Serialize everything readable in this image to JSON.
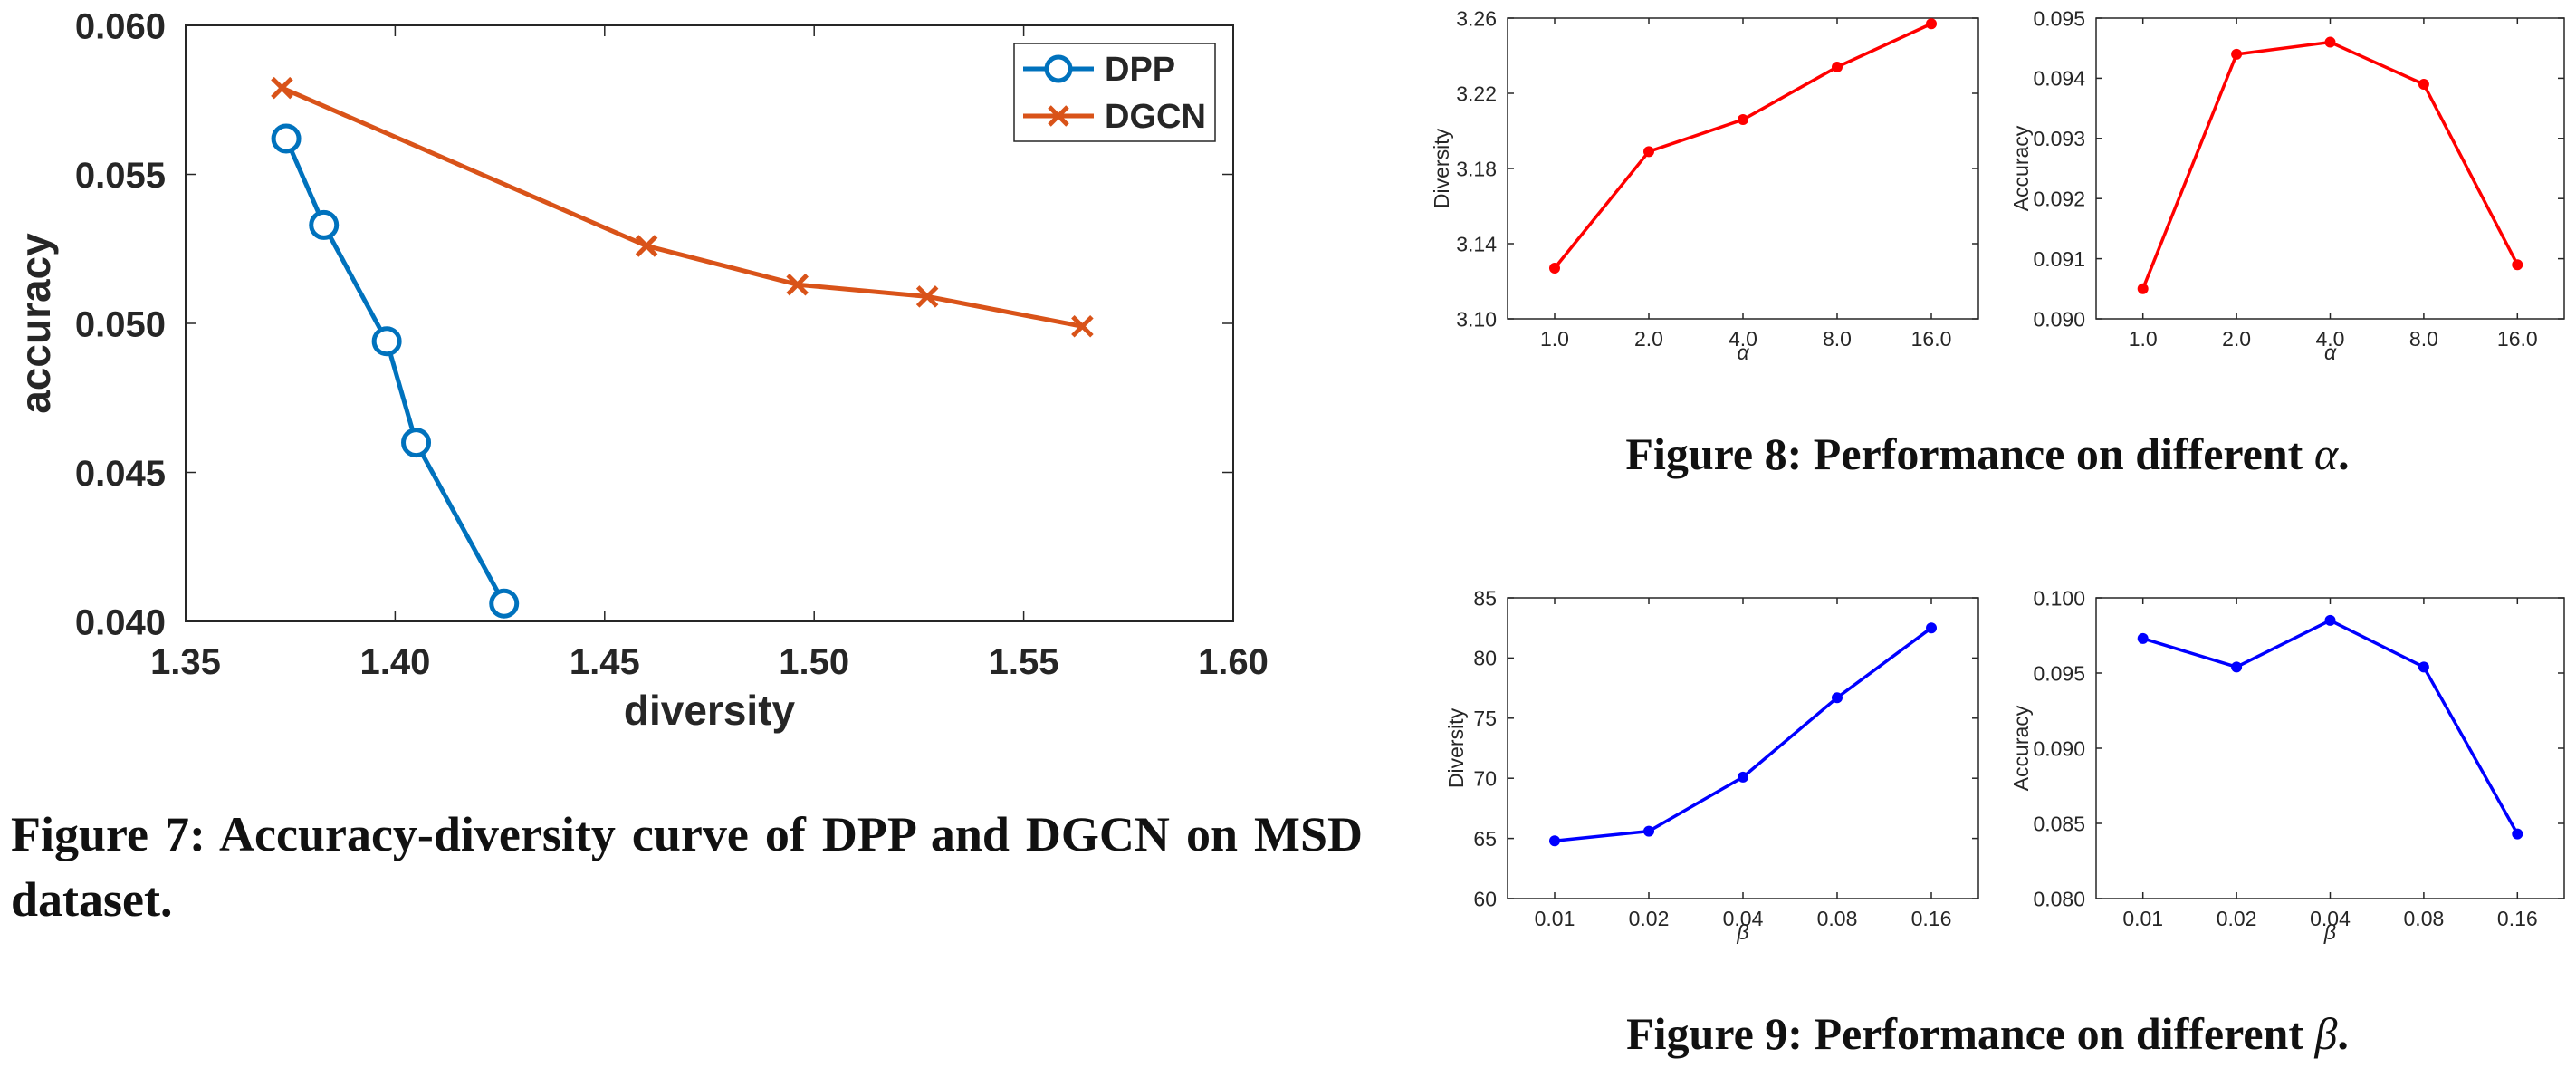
{
  "captions": {
    "fig7": "Figure 7: Accuracy-diversity curve of DPP and DGCN on MSD dataset.",
    "fig8_prefix": "Figure 8: Performance on different ",
    "fig8_symbol": "α",
    "fig8_suffix": ".",
    "fig9_prefix": "Figure 9: Performance on different ",
    "fig9_symbol": "β",
    "fig9_suffix": "."
  },
  "chart_data": [
    {
      "id": "fig7",
      "type": "line",
      "xlabel": "diversity",
      "ylabel": "accuracy",
      "xlim": [
        1.35,
        1.6
      ],
      "ylim": [
        0.04,
        0.06
      ],
      "xticks": [
        1.35,
        1.4,
        1.45,
        1.5,
        1.55,
        1.6
      ],
      "xtick_labels": [
        "1.35",
        "1.40",
        "1.45",
        "1.50",
        "1.55",
        "1.60"
      ],
      "yticks": [
        0.04,
        0.045,
        0.05,
        0.055,
        0.06
      ],
      "ytick_labels": [
        "0.040",
        "0.045",
        "0.050",
        "0.055",
        "0.060"
      ],
      "legend_position": "top-right",
      "grid": false,
      "series": [
        {
          "name": "DPP",
          "color": "#0072BD",
          "marker": "circle",
          "points": [
            [
              1.374,
              0.0562
            ],
            [
              1.383,
              0.0533
            ],
            [
              1.398,
              0.0494
            ],
            [
              1.405,
              0.046
            ],
            [
              1.426,
              0.0406
            ]
          ]
        },
        {
          "name": "DGCN",
          "color": "#D95319",
          "marker": "x",
          "points": [
            [
              1.373,
              0.0579
            ],
            [
              1.46,
              0.0526
            ],
            [
              1.496,
              0.0513
            ],
            [
              1.527,
              0.0509
            ],
            [
              1.564,
              0.0499
            ]
          ]
        }
      ]
    },
    {
      "id": "fig8-diversity",
      "type": "line",
      "xlabel": "α",
      "ylabel": "Diversity",
      "categories": [
        "1.0",
        "2.0",
        "4.0",
        "8.0",
        "16.0"
      ],
      "ylim": [
        3.1,
        3.26
      ],
      "yticks": [
        3.1,
        3.14,
        3.18,
        3.22,
        3.26
      ],
      "ytick_labels": [
        "3.10",
        "3.14",
        "3.18",
        "3.22",
        "3.26"
      ],
      "grid": false,
      "series": [
        {
          "color": "#FF0000",
          "values": [
            3.127,
            3.189,
            3.206,
            3.234,
            3.257
          ]
        }
      ]
    },
    {
      "id": "fig8-accuracy",
      "type": "line",
      "xlabel": "α",
      "ylabel": "Accuracy",
      "categories": [
        "1.0",
        "2.0",
        "4.0",
        "8.0",
        "16.0"
      ],
      "ylim": [
        0.09,
        0.095
      ],
      "yticks": [
        0.09,
        0.091,
        0.092,
        0.093,
        0.094,
        0.095
      ],
      "ytick_labels": [
        "0.090",
        "0.091",
        "0.092",
        "0.093",
        "0.094",
        "0.095"
      ],
      "grid": false,
      "series": [
        {
          "color": "#FF0000",
          "values": [
            0.0905,
            0.0944,
            0.0946,
            0.0939,
            0.0909
          ]
        }
      ]
    },
    {
      "id": "fig9-diversity",
      "type": "line",
      "xlabel": "β",
      "ylabel": "Diversity",
      "categories": [
        "0.01",
        "0.02",
        "0.04",
        "0.08",
        "0.16"
      ],
      "ylim": [
        60,
        85
      ],
      "yticks": [
        60,
        65,
        70,
        75,
        80,
        85
      ],
      "ytick_labels": [
        "60",
        "65",
        "70",
        "75",
        "80",
        "85"
      ],
      "grid": false,
      "series": [
        {
          "color": "#0000FF",
          "values": [
            64.8,
            65.6,
            70.1,
            76.7,
            82.5
          ]
        }
      ]
    },
    {
      "id": "fig9-accuracy",
      "type": "line",
      "xlabel": "β",
      "ylabel": "Accuracy",
      "categories": [
        "0.01",
        "0.02",
        "0.04",
        "0.08",
        "0.16"
      ],
      "ylim": [
        0.08,
        0.1
      ],
      "yticks": [
        0.08,
        0.085,
        0.09,
        0.095,
        0.1
      ],
      "ytick_labels": [
        "0.080",
        "0.085",
        "0.090",
        "0.095",
        "0.100"
      ],
      "grid": false,
      "series": [
        {
          "color": "#0000FF",
          "values": [
            0.0973,
            0.0954,
            0.0985,
            0.0954,
            0.0843
          ]
        }
      ]
    }
  ]
}
